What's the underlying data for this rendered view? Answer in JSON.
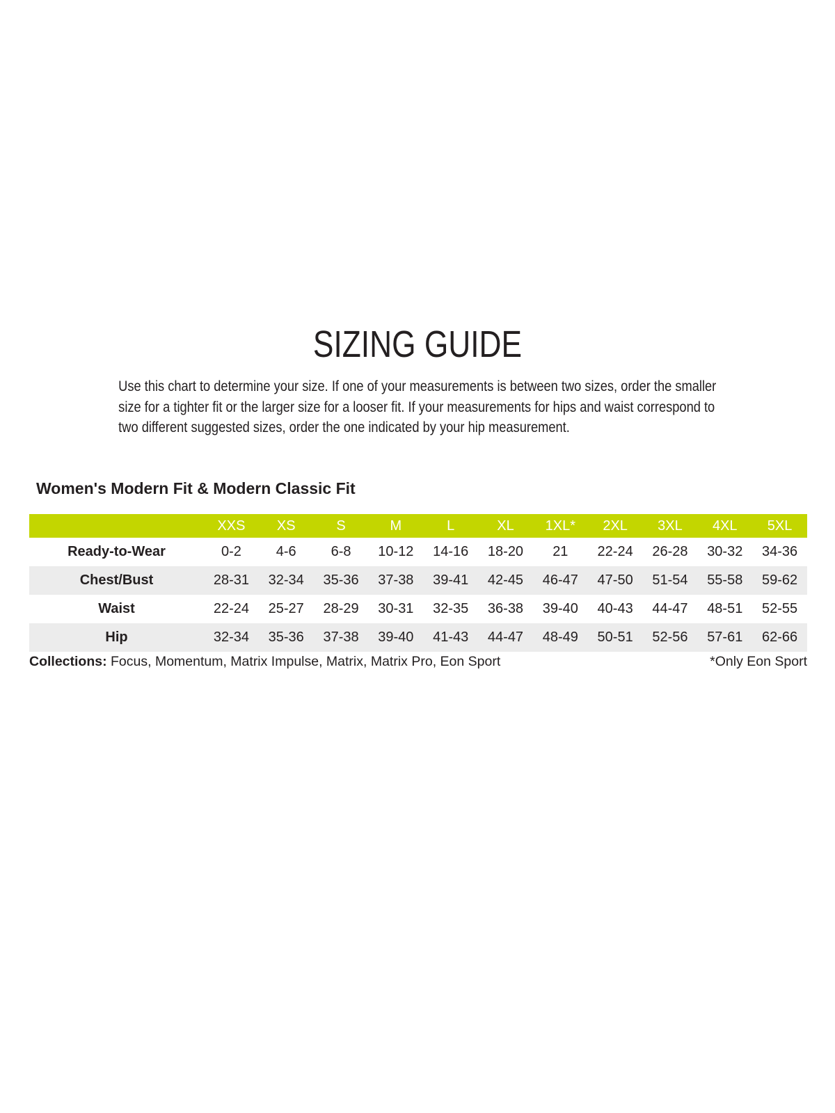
{
  "title": "SIZING GUIDE",
  "intro": {
    "lines": [
      "Use this chart to determine your size. If one of your measurements is between two sizes, order the smaller",
      "size for a tighter fit or the larger size for a looser fit. If your measurements for hips and waist correspond to",
      "two different suggested sizes, order the one indicated by your hip measurement."
    ]
  },
  "section": {
    "heading": "Women's Modern Fit & Modern Classic Fit"
  },
  "size_table": {
    "columns": [
      "XXS",
      "XS",
      "S",
      "M",
      "L",
      "XL",
      "1XL*",
      "2XL",
      "3XL",
      "4XL",
      "5XL"
    ],
    "rows": [
      {
        "label": "Ready-to-Wear",
        "values": [
          "0-2",
          "4-6",
          "6-8",
          "10-12",
          "14-16",
          "18-20",
          "21",
          "22-24",
          "26-28",
          "30-32",
          "34-36"
        ]
      },
      {
        "label": "Chest/Bust",
        "values": [
          "28-31",
          "32-34",
          "35-36",
          "37-38",
          "39-41",
          "42-45",
          "46-47",
          "47-50",
          "51-54",
          "55-58",
          "59-62"
        ]
      },
      {
        "label": "Waist",
        "values": [
          "22-24",
          "25-27",
          "28-29",
          "30-31",
          "32-35",
          "36-38",
          "39-40",
          "40-43",
          "44-47",
          "48-51",
          "52-55"
        ]
      },
      {
        "label": "Hip",
        "values": [
          "32-34",
          "35-36",
          "37-38",
          "39-40",
          "41-43",
          "44-47",
          "48-49",
          "50-51",
          "52-56",
          "57-61",
          "62-66"
        ]
      }
    ]
  },
  "footer": {
    "collections_label": "Collections:",
    "collections_list": " Focus, Momentum, Matrix Impulse, Matrix, Matrix Pro, Eon Sport",
    "note": "*Only Eon Sport"
  },
  "colors": {
    "accent_green": "#c3d600",
    "stripe_gray": "#ececec",
    "text_ink": "#231f20"
  }
}
